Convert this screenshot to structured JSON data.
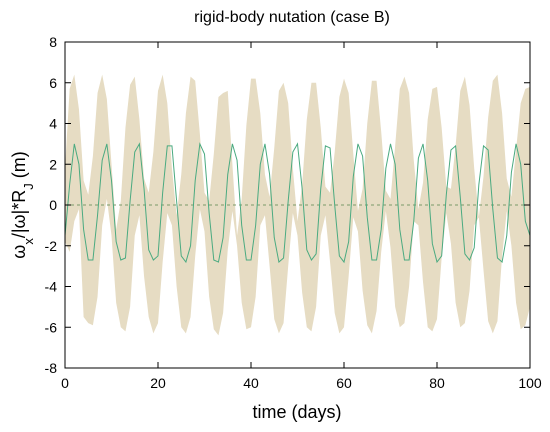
{
  "chart_data": {
    "type": "line",
    "title": "rigid-body nutation (case B)",
    "xlabel": "time (days)",
    "ylabel": {
      "base": "ω",
      "sub1": "x",
      "mid": "/|ω|*R",
      "sub2": "J",
      "end": " (m)"
    },
    "xlim": [
      0,
      100
    ],
    "ylim": [
      -8,
      8
    ],
    "xticks": [
      0,
      20,
      40,
      60,
      80,
      100
    ],
    "yticks": [
      -8,
      -6,
      -4,
      -2,
      0,
      2,
      4,
      6,
      8
    ],
    "grid": false,
    "reference_line": {
      "y": 0,
      "style": "dashed",
      "color": "#7a9a6a"
    },
    "series": [
      {
        "kind": "band",
        "color": "#e6dcc3",
        "x": [
          0,
          1,
          2,
          3,
          4,
          5,
          6,
          7,
          8,
          9,
          10,
          11,
          12,
          13,
          14,
          15,
          16,
          17,
          18,
          19,
          20,
          21,
          22,
          23,
          24,
          25,
          26,
          27,
          28,
          29,
          30,
          31,
          32,
          33,
          34,
          35,
          36,
          37,
          38,
          39,
          40,
          41,
          42,
          43,
          44,
          45,
          46,
          47,
          48,
          49,
          50,
          51,
          52,
          53,
          54,
          55,
          56,
          57,
          58,
          59,
          60,
          61,
          62,
          63,
          64,
          65,
          66,
          67,
          68,
          69,
          70,
          71,
          72,
          73,
          74,
          75,
          76,
          77,
          78,
          79,
          80,
          81,
          82,
          83,
          84,
          85,
          86,
          87,
          88,
          89,
          90,
          91,
          92,
          93,
          94,
          95,
          96,
          97,
          98,
          99,
          100
        ],
        "upper": [
          1.8,
          5.7,
          6.4,
          4.7,
          1.2,
          0.5,
          2.4,
          5.5,
          6.4,
          5.2,
          2.0,
          -1.2,
          0.2,
          3.8,
          5.9,
          6.3,
          4.2,
          1.3,
          0.6,
          2.6,
          5.6,
          6.4,
          5.0,
          1.8,
          -0.5,
          1.5,
          4.5,
          6.3,
          6.1,
          3.5,
          0.6,
          0.2,
          2.5,
          5.3,
          5.5,
          5.6,
          2.0,
          -1.5,
          0.3,
          3.9,
          6.2,
          6.2,
          4.5,
          1.5,
          0.4,
          2.8,
          5.6,
          6.0,
          5.0,
          1.8,
          -0.8,
          1.0,
          4.2,
          6.0,
          6.0,
          3.8,
          0.9,
          0.6,
          2.6,
          5.3,
          6.2,
          5.5,
          2.5,
          -0.3,
          0.8,
          4.0,
          6.1,
          6.1,
          3.6,
          0.7,
          0.3,
          2.9,
          5.7,
          6.3,
          5.5,
          2.2,
          -0.2,
          1.1,
          4.2,
          5.7,
          5.8,
          3.8,
          0.9,
          0.8,
          2.9,
          5.6,
          6.3,
          4.9,
          1.8,
          -0.6,
          1.4,
          4.3,
          6.1,
          6.4,
          4.5,
          1.3,
          0.4,
          2.7,
          5.0,
          5.7,
          5.8
        ],
        "lower": [
          -1.8,
          -2.3,
          -0.8,
          -0.2,
          -5.5,
          -5.8,
          -5.9,
          -4.5,
          -1.0,
          0.3,
          -1.5,
          -4.8,
          -6.0,
          -6.2,
          -5.0,
          -1.5,
          -0.5,
          -3.5,
          -5.5,
          -6.3,
          -5.8,
          -2.8,
          -0.4,
          -1.0,
          -4.0,
          -6.0,
          -6.3,
          -5.5,
          -2.5,
          -0.2,
          -1.3,
          -4.5,
          -6.1,
          -6.4,
          -5.3,
          -2.2,
          -0.3,
          -2.0,
          -4.8,
          -6.1,
          -6.0,
          -4.5,
          -1.0,
          -0.5,
          -3.0,
          -5.6,
          -6.3,
          -5.8,
          -3.0,
          -0.4,
          -1.5,
          -4.3,
          -6.0,
          -6.2,
          -5.0,
          -1.5,
          -0.5,
          -2.8,
          -5.3,
          -6.3,
          -6.0,
          -3.5,
          -0.6,
          -1.3,
          -4.2,
          -5.9,
          -6.3,
          -5.2,
          -2.3,
          -0.3,
          -2.1,
          -5.0,
          -6.0,
          -5.8,
          -4.0,
          -0.8,
          -1.0,
          -3.8,
          -6.0,
          -6.2,
          -5.6,
          -2.6,
          -0.4,
          -1.9,
          -4.8,
          -6.0,
          -5.8,
          -4.2,
          -1.0,
          -0.6,
          -3.2,
          -5.7,
          -6.3,
          -5.7,
          -2.5,
          -0.3,
          -2.0,
          -4.8,
          -6.1,
          -5.9,
          -5.0
        ]
      },
      {
        "kind": "line",
        "color": "#4aaa80",
        "x": [
          0,
          1,
          2,
          3,
          4,
          5,
          6,
          7,
          8,
          9,
          10,
          11,
          12,
          13,
          14,
          15,
          16,
          17,
          18,
          19,
          20,
          21,
          22,
          23,
          24,
          25,
          26,
          27,
          28,
          29,
          30,
          31,
          32,
          33,
          34,
          35,
          36,
          37,
          38,
          39,
          40,
          41,
          42,
          43,
          44,
          45,
          46,
          47,
          48,
          49,
          50,
          51,
          52,
          53,
          54,
          55,
          56,
          57,
          58,
          59,
          60,
          61,
          62,
          63,
          64,
          65,
          66,
          67,
          68,
          69,
          70,
          71,
          72,
          73,
          74,
          75,
          76,
          77,
          78,
          79,
          80,
          81,
          82,
          83,
          84,
          85,
          86,
          87,
          88,
          89,
          90,
          91,
          92,
          93,
          94,
          95,
          96,
          97,
          98,
          99,
          100
        ],
        "values": [
          -1.5,
          1.0,
          3.0,
          2.0,
          -1.2,
          -2.7,
          -2.7,
          -0.5,
          2.2,
          3.0,
          1.2,
          -1.8,
          -2.7,
          -2.6,
          0.2,
          2.6,
          3.0,
          0.8,
          -2.2,
          -2.7,
          -2.5,
          0.6,
          2.9,
          2.9,
          0.2,
          -2.5,
          -2.8,
          -2.0,
          1.2,
          3.0,
          2.5,
          -0.4,
          -2.7,
          -2.8,
          -1.6,
          1.5,
          3.0,
          2.2,
          -1.0,
          -2.7,
          -2.7,
          -1.0,
          2.0,
          3.0,
          1.5,
          -1.6,
          -2.8,
          -2.6,
          0.2,
          2.6,
          3.0,
          0.8,
          -2.2,
          -2.7,
          -2.4,
          0.8,
          2.9,
          2.8,
          0.0,
          -2.5,
          -2.8,
          -1.8,
          1.4,
          3.0,
          2.4,
          -0.6,
          -2.7,
          -2.7,
          -1.2,
          1.8,
          3.0,
          2.0,
          -1.2,
          -2.7,
          -2.7,
          -0.8,
          2.3,
          3.0,
          1.2,
          -1.9,
          -2.8,
          -2.5,
          0.5,
          2.7,
          2.9,
          0.4,
          -2.4,
          -2.7,
          -2.1,
          1.0,
          2.9,
          2.7,
          -0.2,
          -2.6,
          -2.8,
          -1.5,
          1.6,
          3.0,
          2.0,
          -0.8,
          -1.5
        ]
      }
    ]
  }
}
